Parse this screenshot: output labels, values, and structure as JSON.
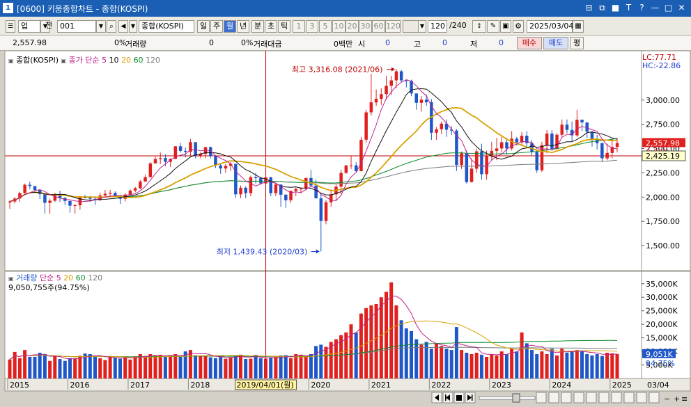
{
  "window": {
    "title": "[0600] 키움종합차트 - 종합(KOSPI)",
    "num": "1",
    "controls": [
      "⊟",
      "⧉",
      "■",
      "T",
      "?",
      "—",
      "□",
      "✕"
    ]
  },
  "toolbar": {
    "market": "업",
    "market2": "전",
    "code": "001",
    "name": "종합(KOSPI)",
    "periods": [
      "일",
      "주",
      "월",
      "년",
      "분",
      "초",
      "틱"
    ],
    "active_period": "월",
    "intervals": [
      "1",
      "3",
      "5",
      "10",
      "20",
      "30",
      "60",
      "120"
    ],
    "count": "120",
    "count_total": "/240",
    "date": "2025/03/04"
  },
  "info": {
    "price": "2,557.98",
    "chg_pct": "0%",
    "vol_label": "거래량",
    "vol_val": "0",
    "vol_pct": "0%",
    "amt_label": "거래대금",
    "amt_val": "0백만",
    "open_label": "시",
    "open_val": "0",
    "high_label": "고",
    "high_val": "0",
    "low_label": "저",
    "low_val": "0",
    "buy": "매수",
    "sell": "매도",
    "eval": "평"
  },
  "colors": {
    "up": "#e0201e",
    "down": "#1f57c7",
    "ma5": "#c0208c",
    "ma10": "#101010",
    "ma20": "#d8a000",
    "ma60": "#0a8a2a",
    "ma120": "#7a7a7a",
    "crosshair": "#c00000"
  },
  "chart_data": [
    {
      "type": "candlestick",
      "title": "종합(KOSPI)",
      "legend": {
        "name": "종합(KOSPI)",
        "label": "종가 단순",
        "periods": [
          "5",
          "10",
          "20",
          "60",
          "120"
        ]
      },
      "lc": "LC:77.71",
      "hc": "HC:-22.86",
      "ylim": [
        1300,
        3450
      ],
      "yticks": [
        "3,000.00",
        "2,750.00",
        "2,500.00",
        "2,250.00",
        "2,000.00",
        "1,750.00",
        "1,500.00"
      ],
      "ytick_values": [
        3000,
        2750,
        2500,
        2250,
        2000,
        1750,
        1500
      ],
      "xlabels": [
        "2015",
        "2016",
        "2017",
        "2018",
        "2019/04/01(월)",
        "2020",
        "2021",
        "2022",
        "2023",
        "2024",
        "2025",
        "03/04"
      ],
      "current_label": "2,557.98",
      "current_value": 2557.98,
      "cross_label": "2,425.19",
      "cross_value": 2425.19,
      "pct_label": "0.00%",
      "max_annotation": "최고 3,316.08 (2021/06)",
      "min_annotation": "최저 1,439.43 (2020/03)",
      "max_value": 3316.08,
      "min_value": 1439.43,
      "start_month": "2015/01",
      "cross_month": "2019/04",
      "closes": [
        1955,
        1985,
        2041,
        2127,
        2114,
        2074,
        2030,
        1941,
        1963,
        2029,
        1991,
        1961,
        1912,
        1916,
        1995,
        1994,
        1983,
        1970,
        2017,
        2034,
        2043,
        2008,
        1983,
        2026,
        2067,
        2091,
        2160,
        2205,
        2347,
        2392,
        2402,
        2363,
        2394,
        2523,
        2476,
        2467,
        2566,
        2427,
        2445,
        2515,
        2423,
        2326,
        2295,
        2322,
        2343,
        2029,
        2097,
        2041,
        2205,
        2195,
        2141,
        2204,
        2041,
        2130,
        2025,
        1967,
        2063,
        2083,
        2087,
        2197,
        2119,
        1987,
        1754,
        1947,
        2029,
        2108,
        2249,
        2326,
        2327,
        2267,
        2591,
        2873,
        2976,
        3013,
        3061,
        3147,
        3203,
        3296,
        3202,
        3199,
        3068,
        2971,
        3004,
        2977,
        2663,
        2699,
        2757,
        2695,
        2685,
        2332,
        2451,
        2155,
        2293,
        2472,
        2236,
        2425,
        2476,
        2501,
        2565,
        2501,
        2602,
        2564,
        2632,
        2556,
        2465,
        2277,
        2535,
        2655,
        2497,
        2642,
        2746,
        2692,
        2636,
        2797,
        2770,
        2674,
        2593,
        2556,
        2399,
        2455,
        2517,
        2557.98
      ],
      "highs": [
        1965,
        2000,
        2055,
        2140,
        2160,
        2110,
        2080,
        2040,
        1985,
        2045,
        2065,
        2000,
        1940,
        1930,
        2010,
        2025,
        2010,
        2010,
        2045,
        2075,
        2075,
        2060,
        2025,
        2040,
        2080,
        2105,
        2175,
        2230,
        2360,
        2420,
        2460,
        2440,
        2400,
        2525,
        2560,
        2510,
        2600,
        2490,
        2460,
        2520,
        2520,
        2430,
        2340,
        2340,
        2360,
        2340,
        2120,
        2110,
        2220,
        2250,
        2210,
        2250,
        2210,
        2150,
        2050,
        2030,
        2070,
        2100,
        2100,
        2200,
        2280,
        2180,
        2040,
        1970,
        2080,
        2130,
        2280,
        2330,
        2430,
        2360,
        2620,
        2900,
        3270,
        3110,
        3120,
        3250,
        3250,
        3320,
        3310,
        3210,
        3210,
        3060,
        3040,
        3060,
        3010,
        2720,
        2780,
        2800,
        2730,
        2700,
        2470,
        2480,
        2400,
        2500,
        2550,
        2480,
        2570,
        2610,
        2620,
        2610,
        2680,
        2620,
        2670,
        2680,
        2590,
        2480,
        2570,
        2690,
        2690,
        2660,
        2800,
        2800,
        2780,
        2900,
        2800,
        2750,
        2680,
        2640,
        2560,
        2550,
        2600,
        2610
      ],
      "lows": [
        1880,
        1935,
        1950,
        2035,
        2080,
        2050,
        1980,
        1830,
        1830,
        1950,
        1950,
        1920,
        1840,
        1830,
        1870,
        1990,
        1950,
        1920,
        1960,
        2005,
        2000,
        2000,
        1930,
        1955,
        2040,
        2050,
        2080,
        2160,
        2210,
        2360,
        2340,
        2320,
        2310,
        2390,
        2460,
        2410,
        2430,
        2400,
        2400,
        2400,
        2400,
        2300,
        2240,
        2250,
        2270,
        1990,
        1990,
        1990,
        2010,
        2140,
        2130,
        2150,
        2010,
        2010,
        1900,
        1890,
        1940,
        2010,
        2040,
        2070,
        2100,
        1990,
        1440,
        1720,
        1900,
        1960,
        2030,
        2240,
        2290,
        2260,
        2270,
        2560,
        2840,
        2940,
        2950,
        3010,
        3050,
        3120,
        3180,
        3130,
        3040,
        2900,
        2880,
        2940,
        2590,
        2590,
        2650,
        2620,
        2640,
        2270,
        2290,
        2140,
        2150,
        2250,
        2180,
        2180,
        2380,
        2380,
        2460,
        2440,
        2480,
        2530,
        2530,
        2520,
        2430,
        2250,
        2260,
        2450,
        2480,
        2490,
        2620,
        2660,
        2570,
        2620,
        2680,
        2610,
        2520,
        2490,
        2360,
        2380,
        2400,
        2460
      ],
      "volumes": [
        7000,
        9800,
        7500,
        10500,
        8000,
        8000,
        9500,
        9000,
        6500,
        8200,
        7200,
        6500,
        7500,
        7300,
        8400,
        9200,
        9000,
        8000,
        7500,
        6800,
        8300,
        7700,
        7300,
        8000,
        7000,
        8200,
        9000,
        8300,
        9000,
        8400,
        8500,
        8000,
        8600,
        9000,
        8000,
        10000,
        10500,
        8600,
        8500,
        8300,
        7800,
        7500,
        8300,
        7300,
        7800,
        8500,
        8800,
        7200,
        7300,
        8700,
        7500,
        7300,
        7700,
        7800,
        8500,
        8600,
        7500,
        9000,
        8800,
        8000,
        9000,
        12000,
        12500,
        11700,
        13500,
        14500,
        16000,
        17000,
        20000,
        17000,
        24000,
        26000,
        27000,
        27500,
        30000,
        32000,
        35500,
        27000,
        21500,
        18500,
        17500,
        14500,
        12500,
        13500,
        11000,
        13000,
        12000,
        11000,
        10500,
        19000,
        10500,
        9500,
        9000,
        9500,
        8800,
        8000,
        9000,
        8500,
        10000,
        9000,
        11000,
        10000,
        17000,
        13000,
        10500,
        9000,
        10000,
        9000,
        11000,
        8500,
        11000,
        9500,
        10000,
        10500,
        10000,
        9000,
        8500,
        9000,
        8300,
        9500,
        9300,
        9051
      ],
      "volume_pane": {
        "legend_name": "거래량",
        "legend_label": "단순",
        "periods": [
          "5",
          "20",
          "60",
          "120"
        ],
        "info": "9,050,755주(94.75%)",
        "ylim": [
          0,
          37000
        ],
        "yticks": [
          "35,000K",
          "30,000K",
          "25,000K",
          "20,000K",
          "15,000K",
          "10,000K",
          "5,000K"
        ],
        "ytick_values": [
          35000,
          30000,
          25000,
          20000,
          15000,
          10000,
          5000
        ],
        "current_label": "9,051K",
        "current_value": 9051,
        "pct_label": "94.75%"
      }
    }
  ]
}
